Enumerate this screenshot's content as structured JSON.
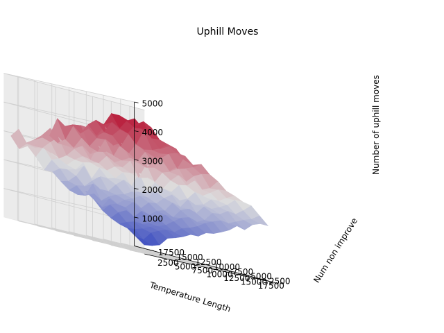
{
  "chart_data": {
    "type": "surface3d",
    "title": "Uphill Moves",
    "xlabel": "Temperature Length",
    "ylabel": "Num non improve",
    "zlabel": "Number of uphill moves",
    "x_ticks": [
      "2500",
      "5000",
      "7500",
      "10000",
      "12500",
      "15000",
      "17500"
    ],
    "y_ticks": [
      "2500",
      "5000",
      "7500",
      "10000",
      "12500",
      "15000",
      "17500"
    ],
    "z_ticks": [
      "1000",
      "2000",
      "3000",
      "4000",
      "5000"
    ],
    "xlim": [
      500,
      19500
    ],
    "ylim": [
      500,
      19500
    ],
    "zlim": [
      0,
      5000
    ],
    "grid": true,
    "colormap": "coolwarm",
    "colormap_low": "#3b4cc0",
    "colormap_mid": "#dddddd",
    "colormap_high": "#b40426",
    "surface_trend": {
      "min_value": 300,
      "max_value": 4600,
      "increases_along": [
        "Num non improve",
        "Temperature Length"
      ]
    }
  }
}
